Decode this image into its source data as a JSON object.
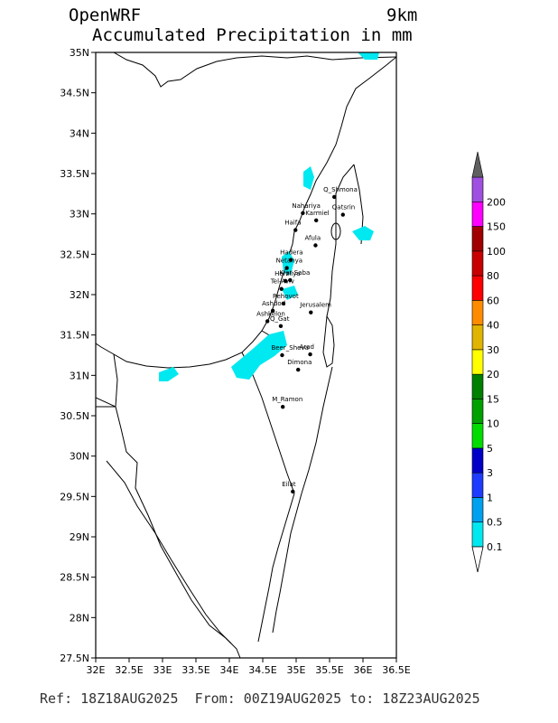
{
  "header": {
    "model": "OpenWRF",
    "resolution": "9km",
    "title": "Accumulated Precipitation in mm"
  },
  "footer": {
    "text": "Ref: 18Z18AUG2025  From: 00Z19AUG2025 to: 18Z23AUG2025"
  },
  "map": {
    "lat_ticks": [
      "35N",
      "34.5N",
      "34N",
      "33.5N",
      "33N",
      "32.5N",
      "32N",
      "31.5N",
      "31N",
      "30.5N",
      "30N",
      "29.5N",
      "29N",
      "28.5N",
      "28N",
      "27.5N"
    ],
    "lon_ticks": [
      "32E",
      "32.5E",
      "33E",
      "33.5E",
      "34E",
      "34.5E",
      "35E",
      "35.5E",
      "36E",
      "36.5E"
    ],
    "lat_range": [
      27.5,
      35
    ],
    "lon_range": [
      32,
      36.5
    ],
    "precip_color": "#00e8f0",
    "cities": [
      {
        "name": "Q_Shmona",
        "lat": 33.21,
        "lon": 35.57
      },
      {
        "name": "Qatsrin",
        "lat": 32.99,
        "lon": 35.7
      },
      {
        "name": "Nahariya",
        "lat": 33.01,
        "lon": 35.1
      },
      {
        "name": "Karmiel",
        "lat": 32.92,
        "lon": 35.3
      },
      {
        "name": "Haifa",
        "lat": 32.8,
        "lon": 34.99
      },
      {
        "name": "Afula",
        "lat": 32.61,
        "lon": 35.29
      },
      {
        "name": "Hadera",
        "lat": 32.43,
        "lon": 34.92
      },
      {
        "name": "Netanya",
        "lat": 32.33,
        "lon": 34.86
      },
      {
        "name": "Herzliya",
        "lat": 32.17,
        "lon": 34.84
      },
      {
        "name": "Kfar Saba",
        "lat": 32.18,
        "lon": 34.91
      },
      {
        "name": "Tel-Aviv",
        "lat": 32.07,
        "lon": 34.78
      },
      {
        "name": "Rehovot",
        "lat": 31.89,
        "lon": 34.81
      },
      {
        "name": "Ashdod",
        "lat": 31.8,
        "lon": 34.65
      },
      {
        "name": "Ashkelon",
        "lat": 31.67,
        "lon": 34.57
      },
      {
        "name": "Jerusalem",
        "lat": 31.78,
        "lon": 35.22
      },
      {
        "name": "Q_Gat",
        "lat": 31.61,
        "lon": 34.77
      },
      {
        "name": "Beer_Sheva",
        "lat": 31.25,
        "lon": 34.79
      },
      {
        "name": "Arad",
        "lat": 31.26,
        "lon": 35.21
      },
      {
        "name": "Dimona",
        "lat": 31.07,
        "lon": 35.03
      },
      {
        "name": "M_Ramon",
        "lat": 30.61,
        "lon": 34.8
      },
      {
        "name": "Eilat",
        "lat": 29.56,
        "lon": 34.95
      }
    ]
  },
  "legend": {
    "levels": [
      {
        "label": "0.1",
        "color": "#00e8f0"
      },
      {
        "label": "0.5",
        "color": "#00a0f0"
      },
      {
        "label": "1",
        "color": "#1e3cff"
      },
      {
        "label": "3",
        "color": "#0000c8"
      },
      {
        "label": "5",
        "color": "#00dc00"
      },
      {
        "label": "10",
        "color": "#00a000"
      },
      {
        "label": "15",
        "color": "#008000"
      },
      {
        "label": "20",
        "color": "#ffff00"
      },
      {
        "label": "30",
        "color": "#e0b400"
      },
      {
        "label": "40",
        "color": "#ff8c00"
      },
      {
        "label": "60",
        "color": "#ff0000"
      },
      {
        "label": "80",
        "color": "#c80000"
      },
      {
        "label": "100",
        "color": "#a00000"
      },
      {
        "label": "150",
        "color": "#ff00ff"
      },
      {
        "label": "200",
        "color": "#a050e0"
      }
    ],
    "top_color": "#606060"
  }
}
